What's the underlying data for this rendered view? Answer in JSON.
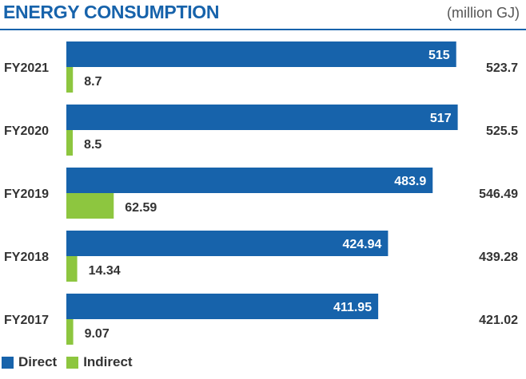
{
  "header": {
    "title": "ENERGY CONSUMPTION",
    "unit": "(million GJ)"
  },
  "colors": {
    "direct": "#1763ab",
    "indirect": "#8dc63f",
    "text": "#333333"
  },
  "chart_data": {
    "type": "bar",
    "orientation": "horizontal",
    "categories": [
      "FY2021",
      "FY2020",
      "FY2019",
      "FY2018",
      "FY2017"
    ],
    "series": [
      {
        "name": "Direct",
        "values": [
          515,
          517,
          483.9,
          424.94,
          411.95
        ],
        "labels": [
          "515",
          "517",
          "483.9",
          "424.94",
          "411.95"
        ]
      },
      {
        "name": "Indirect",
        "values": [
          8.7,
          8.5,
          62.59,
          14.34,
          9.07
        ],
        "labels": [
          "8.7",
          "8.5",
          "62.59",
          "14.34",
          "9.07"
        ]
      }
    ],
    "totals": [
      "523.7",
      "525.5",
      "546.49",
      "439.28",
      "421.02"
    ],
    "legend": "bottom-left",
    "grid": false
  },
  "legend": {
    "items": [
      {
        "label": "Direct"
      },
      {
        "label": "Indirect"
      }
    ]
  }
}
